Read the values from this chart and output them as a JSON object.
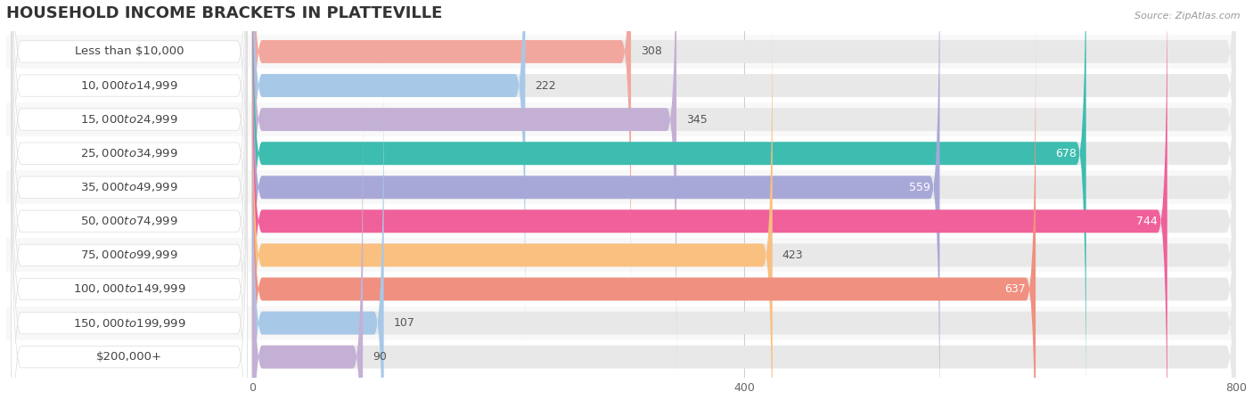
{
  "title": "HOUSEHOLD INCOME BRACKETS IN PLATTEVILLE",
  "source": "Source: ZipAtlas.com",
  "categories": [
    "Less than $10,000",
    "$10,000 to $14,999",
    "$15,000 to $24,999",
    "$25,000 to $34,999",
    "$35,000 to $49,999",
    "$50,000 to $74,999",
    "$75,000 to $99,999",
    "$100,000 to $149,999",
    "$150,000 to $199,999",
    "$200,000+"
  ],
  "values": [
    308,
    222,
    345,
    678,
    559,
    744,
    423,
    637,
    107,
    90
  ],
  "bar_colors": [
    "#F2A79E",
    "#A8C8E8",
    "#C4B0D5",
    "#3DBDB0",
    "#A8A8D8",
    "#F0609A",
    "#F9C080",
    "#F09080",
    "#A8C8E8",
    "#C4B0D5"
  ],
  "value_colors": [
    "#555555",
    "#555555",
    "#555555",
    "#ffffff",
    "#ffffff",
    "#ffffff",
    "#555555",
    "#ffffff",
    "#555555",
    "#555555"
  ],
  "xlim": [
    0,
    800
  ],
  "xticks": [
    0,
    400,
    800
  ],
  "background_color": "#ffffff",
  "bar_bg_color": "#e8e8e8",
  "row_bg_color": "#f5f5f5",
  "title_fontsize": 13,
  "label_fontsize": 9.5,
  "value_fontsize": 9
}
